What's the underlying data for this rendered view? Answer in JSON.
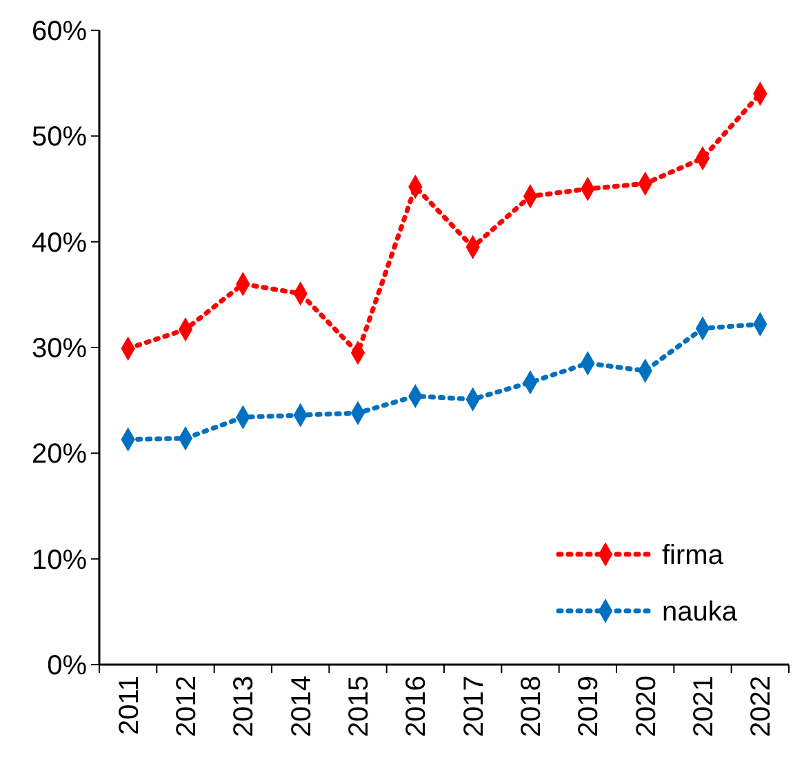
{
  "chart_data": {
    "type": "line",
    "categories": [
      "2011",
      "2012",
      "2013",
      "2014",
      "2015",
      "2016",
      "2017",
      "2018",
      "2019",
      "2020",
      "2021",
      "2022"
    ],
    "series": [
      {
        "name": "firma",
        "color": "#ff0000",
        "values": [
          29.9,
          31.7,
          36,
          35.1,
          29.5,
          45.2,
          39.5,
          44.3,
          45,
          45.5,
          47.9,
          54
        ]
      },
      {
        "name": "nauka",
        "color": "#0070c0",
        "values": [
          21.3,
          21.4,
          23.4,
          23.6,
          23.8,
          25.4,
          25.1,
          26.7,
          28.5,
          27.8,
          31.8,
          32.2
        ]
      }
    ],
    "ylim": [
      0,
      60
    ],
    "yticks": [
      {
        "value": 0,
        "label": "0%"
      },
      {
        "value": 10,
        "label": "10%"
      },
      {
        "value": 20,
        "label": "20%"
      },
      {
        "value": 30,
        "label": "30%"
      },
      {
        "value": 40,
        "label": "40%"
      },
      {
        "value": 50,
        "label": "50%"
      },
      {
        "value": 60,
        "label": "60%"
      }
    ],
    "grid": false,
    "legend": "bottom right",
    "marker": "diamond",
    "line_style": "dotted"
  }
}
